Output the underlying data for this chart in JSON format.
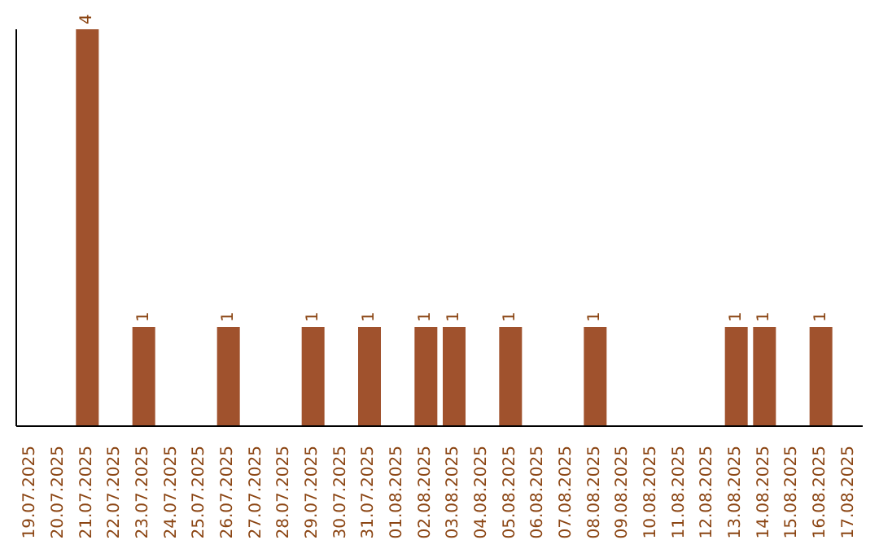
{
  "chart_data": {
    "type": "bar",
    "categories": [
      "19.07.2025",
      "20.07.2025",
      "21.07.2025",
      "22.07.2025",
      "23.07.2025",
      "24.07.2025",
      "25.07.2025",
      "26.07.2025",
      "27.07.2025",
      "28.07.2025",
      "29.07.2025",
      "30.07.2025",
      "31.07.2025",
      "01.08.2025",
      "02.08.2025",
      "03.08.2025",
      "04.08.2025",
      "05.08.2025",
      "06.08.2025",
      "07.08.2025",
      "08.08.2025",
      "09.08.2025",
      "10.08.2025",
      "11.08.2025",
      "12.08.2025",
      "13.08.2025",
      "14.08.2025",
      "15.08.2025",
      "16.08.2025",
      "17.08.2025"
    ],
    "values": [
      0,
      0,
      4,
      0,
      1,
      0,
      0,
      1,
      0,
      0,
      1,
      0,
      1,
      0,
      1,
      1,
      0,
      1,
      0,
      0,
      1,
      0,
      0,
      0,
      0,
      1,
      1,
      0,
      1,
      0
    ],
    "color": "#a0522d",
    "value_labels": [
      null,
      null,
      "4",
      null,
      "1",
      null,
      null,
      "1",
      null,
      null,
      "1",
      null,
      "1",
      null,
      "1",
      "1",
      null,
      "1",
      null,
      null,
      "1",
      null,
      null,
      null,
      null,
      "1",
      "1",
      null,
      "1",
      null
    ],
    "tick_labels": "x",
    "grid": false
  }
}
